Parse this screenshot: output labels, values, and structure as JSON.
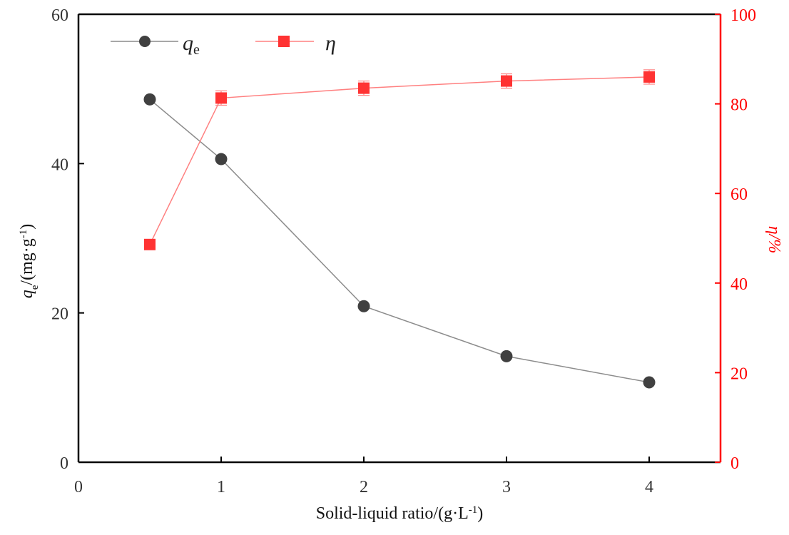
{
  "chart_data": {
    "type": "line",
    "x": [
      0.5,
      1,
      2,
      3,
      4
    ],
    "xlabel_base": "Solid-liquid ratio/(g·L",
    "xlabel_sup": "-1",
    "xlabel_end": ")",
    "ylabel_left_var": "q",
    "ylabel_left_sub": "e",
    "ylabel_left_unit": "/(mg·g",
    "ylabel_left_sup": "-1",
    "ylabel_left_end": ")",
    "ylabel_right": "η/%",
    "xlim": [
      0,
      4.5
    ],
    "ylim_left": [
      0,
      60
    ],
    "ylim_right": [
      0,
      100
    ],
    "xticks": [
      0,
      1,
      2,
      3,
      4
    ],
    "yticks_left": [
      0,
      20,
      40,
      60
    ],
    "yticks_right": [
      0,
      20,
      40,
      60,
      80,
      100
    ],
    "legend_position": "top-left",
    "series": [
      {
        "name": "qe",
        "legend_var": "q",
        "legend_sub": "e",
        "axis": "left",
        "marker": "circle",
        "color": "#404040",
        "line_color": "#8c8c8c",
        "values": [
          48.6,
          40.6,
          20.9,
          14.2,
          10.7
        ]
      },
      {
        "name": "η",
        "legend_var": "η",
        "axis": "right",
        "marker": "square",
        "color": "#ff0000",
        "line_color": "#ff8080",
        "values": [
          48.6,
          81.3,
          83.5,
          85.1,
          86.0
        ],
        "errors": [
          0,
          1.6,
          1.6,
          1.6,
          1.6
        ]
      }
    ]
  }
}
